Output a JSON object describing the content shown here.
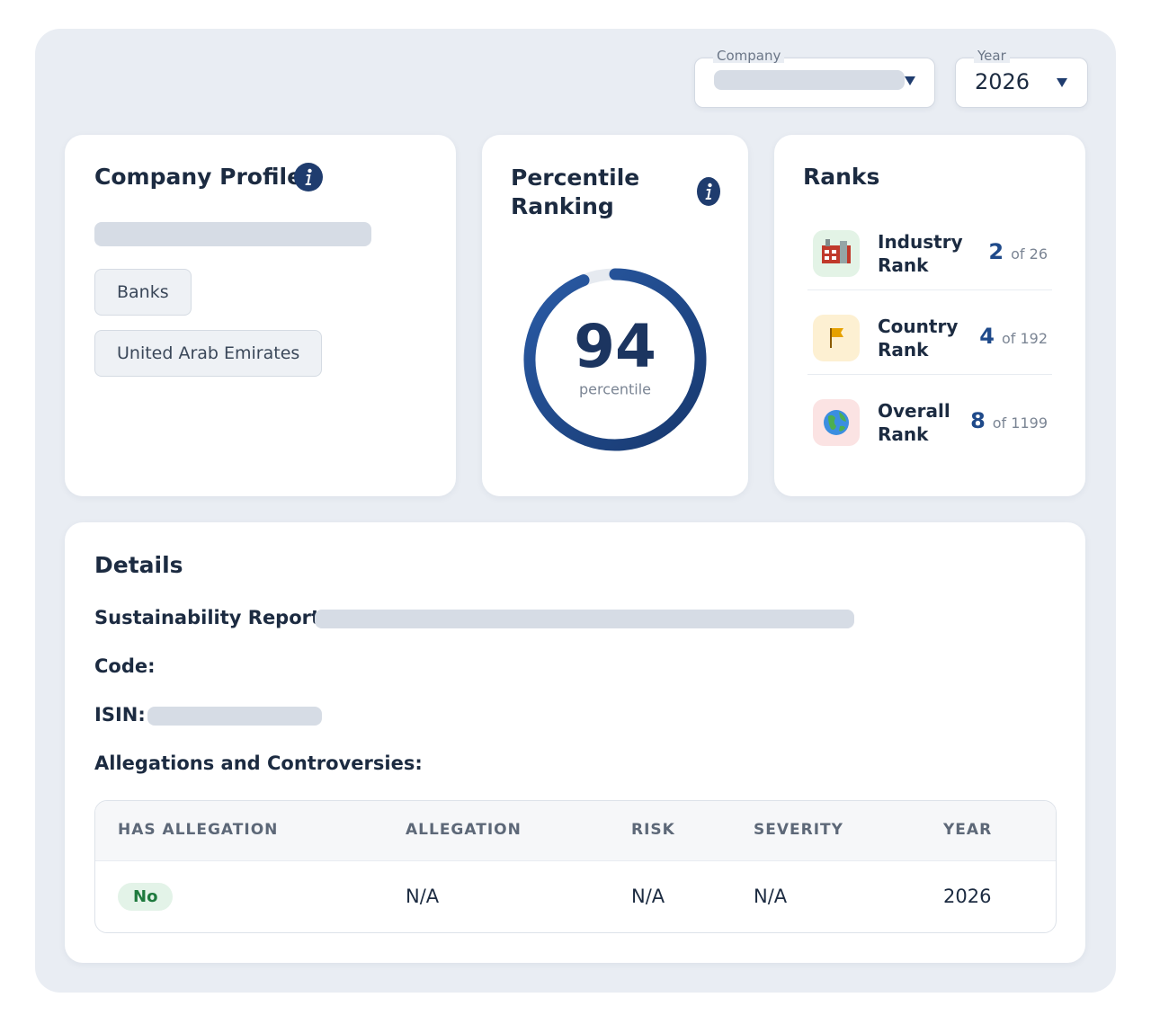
{
  "filters": {
    "company": {
      "label": "Company"
    },
    "year": {
      "label": "Year",
      "value": "2026"
    }
  },
  "company_profile": {
    "title": "Company Profile",
    "tags": [
      "Banks",
      "United Arab Emirates"
    ]
  },
  "percentile_ranking": {
    "title": "Percentile Ranking",
    "value": 94,
    "scale": [
      0,
      100
    ],
    "caption": "percentile"
  },
  "ranks": {
    "title": "Ranks",
    "items": [
      {
        "label": "Industry Rank",
        "rank": 2,
        "out_of": "of 26"
      },
      {
        "label": "Country Rank",
        "rank": 4,
        "out_of": "of 192"
      },
      {
        "label": "Overall Rank",
        "rank": 8,
        "out_of": "of 1199"
      }
    ]
  },
  "details": {
    "title": "Details",
    "fields": [
      "Sustainability Report:",
      "Code:",
      "ISIN:"
    ],
    "allegations_title": "Allegations and Controversies:",
    "table": {
      "columns": [
        "HAS ALLEGATION",
        "ALLEGATION",
        "RISK",
        "SEVERITY",
        "YEAR"
      ],
      "rows": [
        [
          "No",
          "N/A",
          "N/A",
          "N/A",
          "2026"
        ]
      ]
    }
  }
}
